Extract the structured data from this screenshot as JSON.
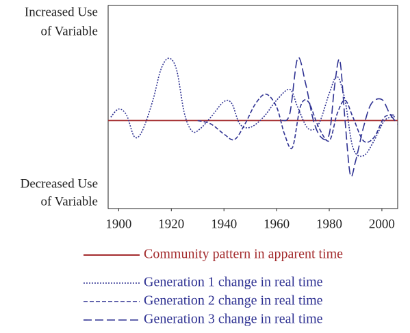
{
  "chart_data": {
    "type": "line",
    "y_labels": {
      "top": [
        "Increased Use",
        "of Variable"
      ],
      "bottom": [
        "Decreased Use",
        "of Variable"
      ]
    },
    "xlim": [
      1896,
      2006
    ],
    "xticks": [
      1900,
      1920,
      1940,
      1960,
      1980,
      2000
    ],
    "ylim": [
      -1.3,
      1.7
    ],
    "series": [
      {
        "name": "Community pattern in apparent time",
        "color": "#a32a2c",
        "dash": "solid",
        "x": [
          1896,
          2006
        ],
        "values": [
          0,
          0
        ]
      },
      {
        "name": "Generation 1 change in real time",
        "color": "#2e3192",
        "dash": "dotted",
        "x": [
          1897,
          1900,
          1903,
          1906,
          1909,
          1913,
          1916,
          1919,
          1922,
          1925,
          1928,
          1931,
          1935,
          1940,
          1943,
          1946,
          1950,
          1955,
          1960,
          1965,
          1968,
          1972,
          1976,
          1980,
          1983,
          1986,
          1989,
          1993,
          1997,
          2001,
          2005
        ],
        "values": [
          0.05,
          0.17,
          0.08,
          -0.24,
          -0.15,
          0.3,
          0.75,
          0.92,
          0.75,
          0.1,
          -0.16,
          -0.12,
          0.05,
          0.28,
          0.25,
          -0.05,
          -0.1,
          0.05,
          0.3,
          0.46,
          0.2,
          -0.12,
          -0.05,
          0.4,
          0.65,
          0.3,
          -0.4,
          -0.52,
          -0.3,
          0.0,
          0.06
        ]
      },
      {
        "name": "Generation 2 change in real time",
        "color": "#2e3192",
        "dash": "dashed",
        "x": [
          1930,
          1935,
          1940,
          1944,
          1948,
          1952,
          1956,
          1960,
          1963,
          1966,
          1969,
          1972,
          1976,
          1980,
          1983,
          1986,
          1989,
          1993,
          1997,
          2001,
          2005
        ],
        "values": [
          0,
          -0.05,
          -0.2,
          -0.28,
          -0.05,
          0.25,
          0.39,
          0.2,
          -0.2,
          -0.4,
          0.2,
          0.28,
          -0.1,
          -0.3,
          0.1,
          0.3,
          0.05,
          -0.3,
          -0.25,
          0.05,
          0.08
        ]
      },
      {
        "name": "Generation 3 change in real time",
        "color": "#2e3192",
        "dash": "longdash",
        "x": [
          1962,
          1965,
          1968,
          1971,
          1974,
          1977,
          1980,
          1982,
          1984,
          1986,
          1988,
          1990,
          1993,
          1996,
          2000,
          2003,
          2006
        ],
        "values": [
          0,
          0.1,
          0.92,
          0.55,
          0.0,
          -0.25,
          -0.2,
          0.5,
          0.89,
          0.0,
          -0.8,
          -0.6,
          -0.1,
          0.25,
          0.31,
          0.1,
          -0.05
        ]
      }
    ]
  }
}
